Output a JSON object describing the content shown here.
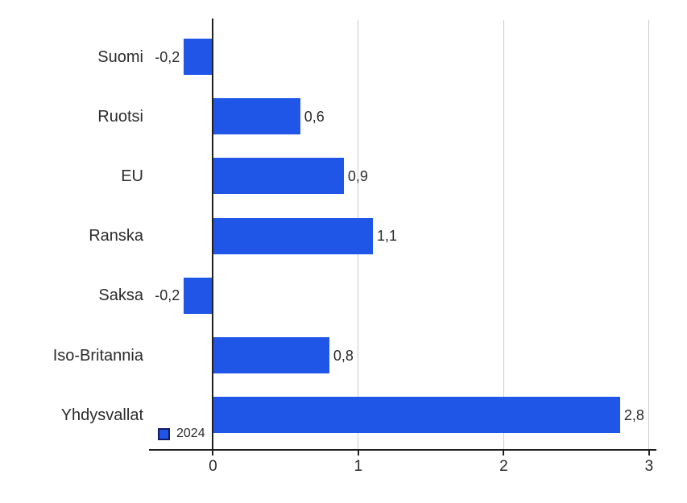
{
  "chart_data": {
    "type": "bar",
    "orientation": "horizontal",
    "title": "",
    "xlabel": "",
    "ylabel": "",
    "categories": [
      "Suomi",
      "Ruotsi",
      "EU",
      "Ranska",
      "Saksa",
      "Iso-Britannia",
      "Yhdysvallat"
    ],
    "series": [
      {
        "name": "2024",
        "values": [
          -0.2,
          0.6,
          0.9,
          1.1,
          -0.2,
          0.8,
          2.8
        ]
      }
    ],
    "value_labels": [
      "-0,2",
      "0,6",
      "0,9",
      "1,1",
      "-0,2",
      "0,8",
      "2,8"
    ],
    "xlim": [
      -0.44,
      3.05
    ],
    "xticks": [
      0,
      1,
      2,
      3
    ],
    "xtick_labels": [
      "0",
      "1",
      "2",
      "3"
    ],
    "grid": true,
    "legend": {
      "position": "bottom-left",
      "entries": [
        {
          "label": "2024",
          "color": "#2056e8"
        }
      ]
    },
    "colors": {
      "bar": "#2056e8",
      "axis": "#1f1f1f",
      "gridline": "#cccccc",
      "text": "#2b2b2b",
      "legend_border": "#141a66"
    }
  }
}
